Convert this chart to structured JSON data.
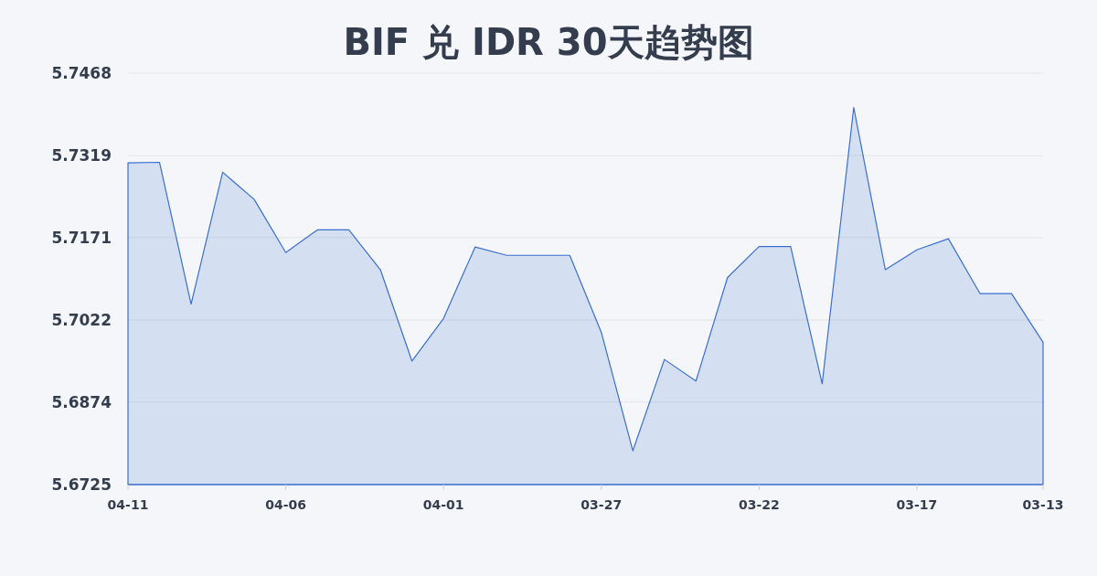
{
  "chart_data": {
    "type": "area",
    "title": "BIF 兑 IDR 30天趋势图",
    "categories": [
      "04-11",
      null,
      null,
      null,
      null,
      "04-06",
      null,
      null,
      null,
      null,
      "04-01",
      null,
      null,
      null,
      null,
      "03-27",
      null,
      null,
      null,
      null,
      "03-22",
      null,
      null,
      null,
      null,
      "03-17",
      null,
      null,
      null,
      "03-13"
    ],
    "values": [
      5.7306,
      5.7307,
      5.7051,
      5.7289,
      5.724,
      5.7144,
      5.7185,
      5.7185,
      5.7113,
      5.6948,
      5.7025,
      5.7154,
      5.7139,
      5.7139,
      5.7139,
      5.7,
      5.6786,
      5.6951,
      5.6912,
      5.7099,
      5.7155,
      5.7155,
      5.6907,
      5.7406,
      5.7113,
      5.7149,
      5.7169,
      5.707,
      5.707,
      5.6982
    ],
    "color": "#3a6fd0",
    "ylim": [
      5.6725,
      5.7468
    ],
    "yticks": [
      5.6725,
      5.6874,
      5.7022,
      5.7171,
      5.7319,
      5.7468
    ],
    "grid": "y"
  }
}
